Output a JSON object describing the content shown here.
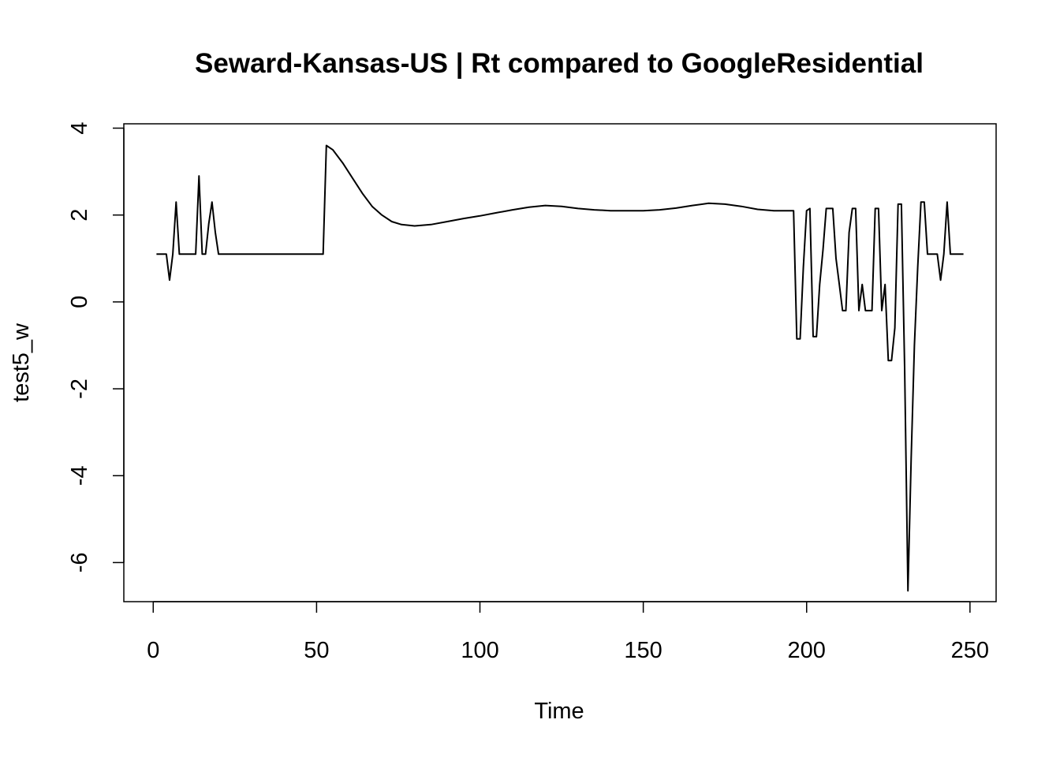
{
  "chart_data": {
    "type": "line",
    "title": "Seward-Kansas-US | Rt compared to GoogleResidential",
    "xlabel": "Time",
    "ylabel": "test5_w",
    "xlim": [
      -9,
      258
    ],
    "ylim": [
      -6.9,
      4.1
    ],
    "x_ticks": [
      0,
      50,
      100,
      150,
      200,
      250
    ],
    "y_ticks": [
      4,
      2,
      0,
      -2,
      -4,
      -6
    ],
    "grid": false,
    "legend": "none",
    "line_color": "#000000",
    "series": [
      {
        "x": [
          1,
          2,
          3,
          4,
          5,
          6,
          7,
          8,
          9,
          10,
          11,
          12,
          13,
          14,
          15,
          16,
          17,
          18,
          19,
          20,
          25,
          30,
          35,
          40,
          45,
          50,
          52,
          53,
          55,
          58,
          61,
          64,
          67,
          70,
          73,
          76,
          80,
          85,
          90,
          95,
          100,
          105,
          110,
          115,
          120,
          125,
          130,
          135,
          140,
          145,
          150,
          155,
          160,
          165,
          170,
          175,
          180,
          185,
          190,
          195,
          196,
          197,
          198,
          199,
          200,
          201,
          202,
          203,
          204,
          205,
          206,
          207,
          208,
          209,
          210,
          211,
          212,
          213,
          214,
          215,
          216,
          217,
          218,
          219,
          220,
          221,
          222,
          223,
          224,
          225,
          226,
          227,
          228,
          229,
          230,
          231,
          232,
          233,
          234,
          235,
          236,
          237,
          238,
          239,
          240,
          241,
          242,
          243,
          244,
          245,
          246,
          247,
          248
        ],
        "y": [
          1.1,
          1.1,
          1.1,
          1.1,
          0.5,
          1.1,
          2.3,
          1.1,
          1.1,
          1.1,
          1.1,
          1.1,
          1.1,
          2.9,
          1.1,
          1.1,
          1.8,
          2.3,
          1.6,
          1.1,
          1.1,
          1.1,
          1.1,
          1.1,
          1.1,
          1.1,
          1.1,
          3.6,
          3.5,
          3.2,
          2.85,
          2.5,
          2.2,
          2.0,
          1.85,
          1.78,
          1.75,
          1.78,
          1.85,
          1.92,
          1.98,
          2.05,
          2.12,
          2.18,
          2.22,
          2.2,
          2.15,
          2.12,
          2.1,
          2.1,
          2.1,
          2.12,
          2.16,
          2.22,
          2.27,
          2.25,
          2.2,
          2.13,
          2.1,
          2.1,
          2.1,
          -0.85,
          -0.85,
          0.8,
          2.1,
          2.15,
          -0.8,
          -0.8,
          0.4,
          1.2,
          2.15,
          2.15,
          2.15,
          1.0,
          0.4,
          -0.2,
          -0.2,
          1.6,
          2.15,
          2.15,
          -0.2,
          0.4,
          -0.2,
          -0.2,
          -0.2,
          2.15,
          2.15,
          -0.2,
          0.4,
          -1.35,
          -1.35,
          -0.6,
          2.25,
          2.25,
          -1.5,
          -6.65,
          -3.6,
          -1.0,
          0.8,
          2.3,
          2.3,
          1.1,
          1.1,
          1.1,
          1.1,
          0.5,
          1.1,
          2.3,
          1.1,
          1.1,
          1.1,
          1.1,
          1.1
        ]
      }
    ]
  }
}
